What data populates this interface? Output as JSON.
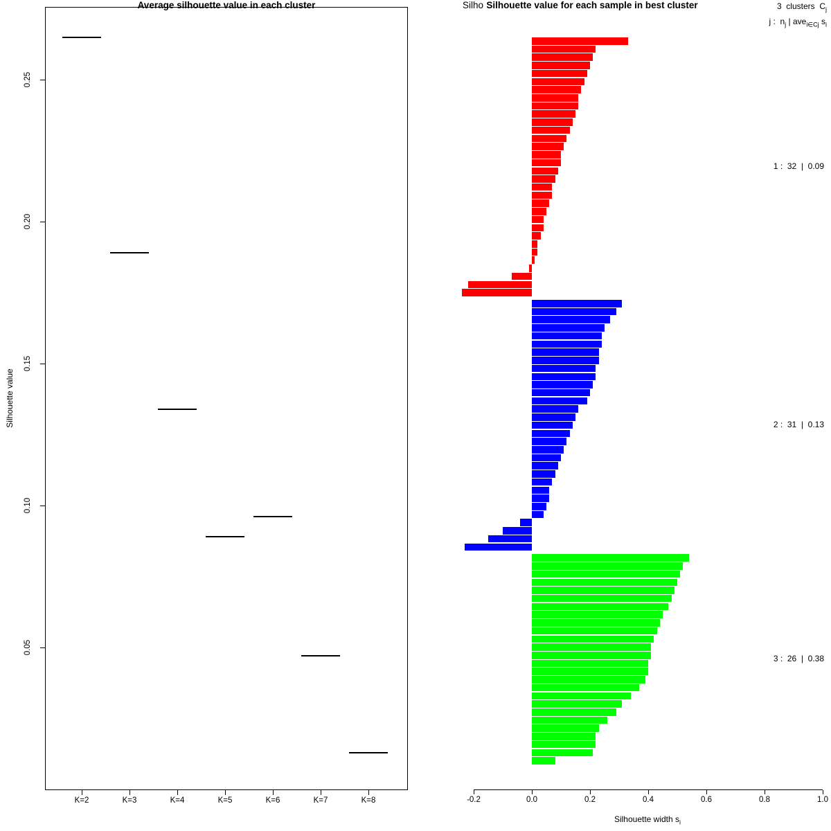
{
  "figure": {
    "background": "#ffffff",
    "foreground": "#000000"
  },
  "chart_data": [
    {
      "type": "scatter",
      "mark": "horizontal-segment",
      "title": "Average silhouette value in each cluster",
      "ylabel": "Silhouette value",
      "xlabel": "",
      "categories": [
        "K=2",
        "K=3",
        "K=4",
        "K=5",
        "K=6",
        "K=7",
        "K=8"
      ],
      "values": [
        0.265,
        0.189,
        0.134,
        0.089,
        0.096,
        0.047,
        0.013
      ],
      "ylim": [
        0.0,
        0.275
      ],
      "yticks": [
        {
          "value": 0.05,
          "label": "0.05"
        },
        {
          "value": 0.1,
          "label": "0.10"
        },
        {
          "value": 0.15,
          "label": "0.15"
        },
        {
          "value": 0.2,
          "label": "0.20"
        },
        {
          "value": 0.25,
          "label": "0.25"
        }
      ],
      "grid": false,
      "segment_color": "#000000"
    },
    {
      "type": "bar",
      "orientation": "horizontal",
      "title": "Silhouette value for each sample in best cluster",
      "background_title_fragment": "Silho",
      "xlabel_main": "Silhouette width s",
      "xlabel_sub": "i",
      "xlim": [
        -0.3,
        1.0
      ],
      "xticks": [
        {
          "value": -0.2,
          "label": "-0.2"
        },
        {
          "value": 0.0,
          "label": "0.0"
        },
        {
          "value": 0.2,
          "label": "0.2"
        },
        {
          "value": 0.4,
          "label": "0.4"
        },
        {
          "value": 0.6,
          "label": "0.6"
        },
        {
          "value": 0.8,
          "label": "0.8"
        },
        {
          "value": 1.0,
          "label": "1.0"
        }
      ],
      "legend": {
        "line1": "3  clusters  C",
        "line1_sub": "j",
        "line2_a": "j :  n",
        "line2_a_sub": "j",
        "line2_b": " | ave",
        "line2_b_sub": "i∈Cj",
        "line2_c": " s",
        "line2_c_sub": "i"
      },
      "series": [
        {
          "name": "1",
          "n": 32,
          "ave": "0.09",
          "color": "#ff0000",
          "label": "1 :  32  |  0.09",
          "values": [
            0.33,
            0.22,
            0.21,
            0.2,
            0.19,
            0.18,
            0.17,
            0.16,
            0.16,
            0.15,
            0.14,
            0.13,
            0.12,
            0.11,
            0.1,
            0.1,
            0.09,
            0.08,
            0.07,
            0.07,
            0.06,
            0.05,
            0.04,
            0.04,
            0.03,
            0.02,
            0.02,
            0.01,
            -0.01,
            -0.07,
            -0.22,
            -0.24
          ]
        },
        {
          "name": "2",
          "n": 31,
          "ave": "0.13",
          "color": "#0000ff",
          "label": "2 :  31  |  0.13",
          "values": [
            0.31,
            0.29,
            0.27,
            0.25,
            0.24,
            0.24,
            0.23,
            0.23,
            0.22,
            0.22,
            0.21,
            0.2,
            0.19,
            0.16,
            0.15,
            0.14,
            0.13,
            0.12,
            0.11,
            0.1,
            0.09,
            0.08,
            0.07,
            0.06,
            0.06,
            0.05,
            0.04,
            -0.04,
            -0.1,
            -0.15,
            -0.23
          ]
        },
        {
          "name": "3",
          "n": 26,
          "ave": "0.38",
          "color": "#00ff00",
          "label": "3 :  26  |  0.38",
          "values": [
            0.54,
            0.52,
            0.51,
            0.5,
            0.49,
            0.48,
            0.47,
            0.45,
            0.44,
            0.43,
            0.42,
            0.41,
            0.41,
            0.4,
            0.4,
            0.39,
            0.37,
            0.34,
            0.31,
            0.29,
            0.26,
            0.23,
            0.22,
            0.22,
            0.21,
            0.08
          ]
        }
      ]
    }
  ]
}
